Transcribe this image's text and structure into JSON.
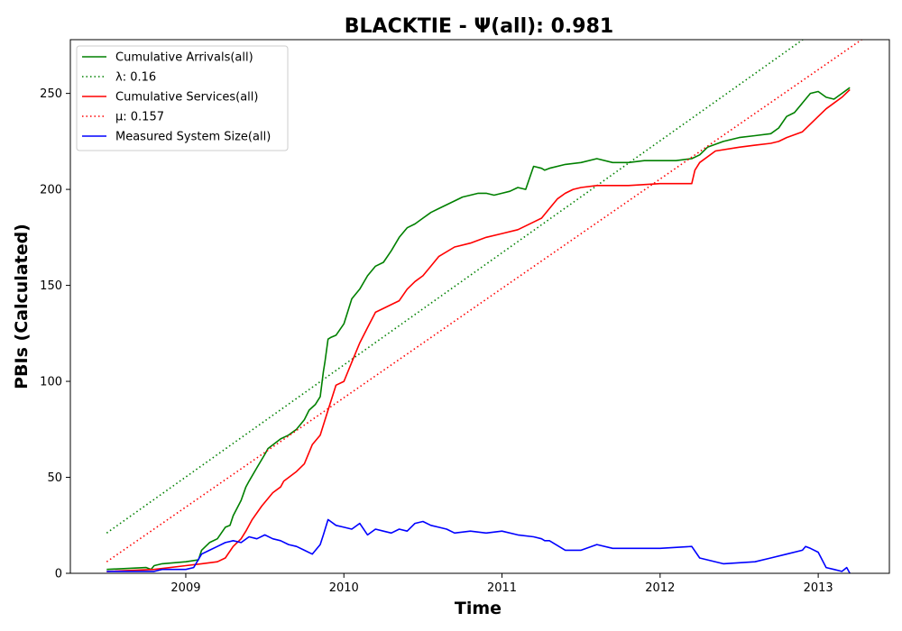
{
  "chart_data": {
    "type": "line",
    "title": "BLACKTIE -  Ψ(all): 0.981",
    "xlabel": "Time",
    "ylabel": "PBIs (Calculated)",
    "xlim": [
      2008.27,
      2013.45
    ],
    "ylim": [
      0,
      278
    ],
    "x_ticks": [
      {
        "value": 2009,
        "label": "2009"
      },
      {
        "value": 2010,
        "label": "2010"
      },
      {
        "value": 2011,
        "label": "2011"
      },
      {
        "value": 2012,
        "label": "2012"
      },
      {
        "value": 2013,
        "label": "2013"
      }
    ],
    "y_ticks": [
      {
        "value": 0,
        "label": "0"
      },
      {
        "value": 50,
        "label": "50"
      },
      {
        "value": 100,
        "label": "100"
      },
      {
        "value": 150,
        "label": "150"
      },
      {
        "value": 200,
        "label": "200"
      },
      {
        "value": 250,
        "label": "250"
      }
    ],
    "grid": false,
    "legend_position": "top-left",
    "series": [
      {
        "name": "Cumulative Arrivals(all)",
        "color": "#008000",
        "style": "solid",
        "x": [
          2008.5,
          2008.75,
          2008.78,
          2008.8,
          2008.85,
          2009.0,
          2009.08,
          2009.1,
          2009.15,
          2009.2,
          2009.25,
          2009.28,
          2009.3,
          2009.35,
          2009.38,
          2009.4,
          2009.45,
          2009.5,
          2009.52,
          2009.6,
          2009.65,
          2009.7,
          2009.75,
          2009.78,
          2009.82,
          2009.85,
          2009.87,
          2009.88,
          2009.9,
          2009.92,
          2009.95,
          2010.0,
          2010.05,
          2010.1,
          2010.15,
          2010.2,
          2010.25,
          2010.3,
          2010.35,
          2010.4,
          2010.45,
          2010.5,
          2010.55,
          2010.6,
          2010.65,
          2010.7,
          2010.75,
          2010.8,
          2010.85,
          2010.9,
          2010.95,
          2011.0,
          2011.05,
          2011.1,
          2011.15,
          2011.2,
          2011.25,
          2011.27,
          2011.3,
          2011.4,
          2011.5,
          2011.6,
          2011.7,
          2011.8,
          2011.9,
          2012.0,
          2012.1,
          2012.2,
          2012.25,
          2012.3,
          2012.4,
          2012.5,
          2012.6,
          2012.7,
          2012.75,
          2012.8,
          2012.85,
          2012.9,
          2012.95,
          2013.0,
          2013.05,
          2013.1,
          2013.15,
          2013.2
        ],
        "y": [
          2,
          3,
          2,
          4,
          5,
          6,
          7,
          12,
          16,
          18,
          24,
          25,
          30,
          38,
          45,
          48,
          55,
          62,
          65,
          70,
          72,
          75,
          80,
          85,
          88,
          92,
          105,
          110,
          122,
          123,
          124,
          130,
          143,
          148,
          155,
          160,
          162,
          168,
          175,
          180,
          182,
          185,
          188,
          190,
          192,
          194,
          196,
          197,
          198,
          198,
          197,
          198,
          199,
          201,
          200,
          212,
          211,
          210,
          211,
          213,
          214,
          216,
          214,
          214,
          215,
          215,
          215,
          216,
          218,
          222,
          225,
          227,
          228,
          229,
          232,
          238,
          240,
          245,
          250,
          251,
          248,
          247,
          250,
          253
        ]
      },
      {
        "name": "λ: 0.16",
        "color": "#008000",
        "style": "dotted",
        "x": [
          2008.5,
          2013.45
        ],
        "y": [
          21,
          310
        ]
      },
      {
        "name": "Cumulative Services(all)",
        "color": "#ff0000",
        "style": "solid",
        "x": [
          2008.5,
          2008.8,
          2009.0,
          2009.1,
          2009.2,
          2009.25,
          2009.3,
          2009.35,
          2009.38,
          2009.42,
          2009.48,
          2009.55,
          2009.6,
          2009.62,
          2009.7,
          2009.75,
          2009.8,
          2009.85,
          2009.9,
          2009.95,
          2010.0,
          2010.05,
          2010.1,
          2010.15,
          2010.2,
          2010.25,
          2010.3,
          2010.35,
          2010.4,
          2010.45,
          2010.5,
          2010.55,
          2010.6,
          2010.7,
          2010.8,
          2010.9,
          2011.0,
          2011.1,
          2011.2,
          2011.25,
          2011.3,
          2011.35,
          2011.4,
          2011.45,
          2011.5,
          2011.6,
          2011.8,
          2012.0,
          2012.2,
          2012.22,
          2012.25,
          2012.35,
          2012.5,
          2012.6,
          2012.7,
          2012.75,
          2012.8,
          2012.9,
          2013.0,
          2013.05,
          2013.1,
          2013.15,
          2013.2
        ],
        "y": [
          1,
          2,
          4,
          5,
          6,
          8,
          14,
          18,
          22,
          28,
          35,
          42,
          45,
          48,
          53,
          57,
          67,
          72,
          85,
          98,
          100,
          110,
          120,
          128,
          136,
          138,
          140,
          142,
          148,
          152,
          155,
          160,
          165,
          170,
          172,
          175,
          177,
          179,
          183,
          185,
          190,
          195,
          198,
          200,
          201,
          202,
          202,
          203,
          203,
          210,
          214,
          220,
          222,
          223,
          224,
          225,
          227,
          230,
          238,
          242,
          245,
          248,
          252
        ]
      },
      {
        "name": "μ: 0.157",
        "color": "#ff0000",
        "style": "dotted",
        "x": [
          2008.5,
          2013.45
        ],
        "y": [
          6,
          288
        ]
      },
      {
        "name": "Measured System Size(all)",
        "color": "#0000ff",
        "style": "solid",
        "x": [
          2008.5,
          2008.8,
          2008.85,
          2009.0,
          2009.05,
          2009.1,
          2009.15,
          2009.2,
          2009.25,
          2009.3,
          2009.35,
          2009.4,
          2009.45,
          2009.5,
          2009.55,
          2009.6,
          2009.65,
          2009.7,
          2009.75,
          2009.8,
          2009.85,
          2009.87,
          2009.9,
          2009.95,
          2010.0,
          2010.05,
          2010.1,
          2010.15,
          2010.2,
          2010.25,
          2010.3,
          2010.35,
          2010.4,
          2010.45,
          2010.5,
          2010.55,
          2010.6,
          2010.65,
          2010.7,
          2010.8,
          2010.9,
          2011.0,
          2011.1,
          2011.2,
          2011.25,
          2011.27,
          2011.3,
          2011.4,
          2011.5,
          2011.6,
          2011.7,
          2011.8,
          2012.0,
          2012.2,
          2012.25,
          2012.3,
          2012.4,
          2012.6,
          2012.7,
          2012.8,
          2012.9,
          2012.92,
          2012.95,
          2013.0,
          2013.05,
          2013.1,
          2013.15,
          2013.18,
          2013.2
        ],
        "y": [
          1,
          1,
          2,
          2,
          3,
          10,
          12,
          14,
          16,
          17,
          16,
          19,
          18,
          20,
          18,
          17,
          15,
          14,
          12,
          10,
          15,
          20,
          28,
          25,
          24,
          23,
          26,
          20,
          23,
          22,
          21,
          23,
          22,
          26,
          27,
          25,
          24,
          23,
          21,
          22,
          21,
          22,
          20,
          19,
          18,
          17,
          17,
          12,
          12,
          15,
          13,
          13,
          13,
          14,
          8,
          7,
          5,
          6,
          8,
          10,
          12,
          14,
          13,
          11,
          3,
          2,
          1,
          3,
          0
        ]
      }
    ]
  }
}
